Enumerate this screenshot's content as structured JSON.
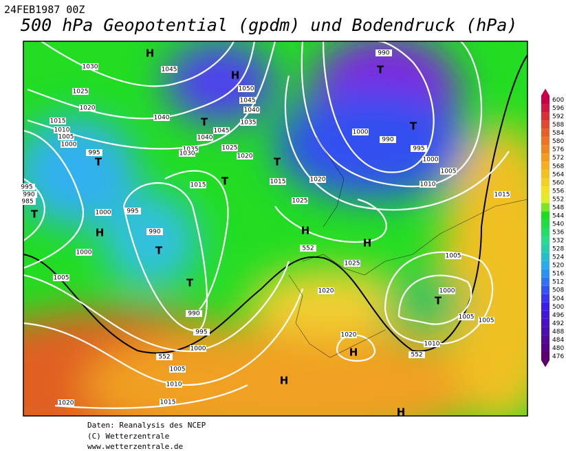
{
  "header": {
    "date": "24FEB1987 00Z",
    "title": "500 hPa Geopotential (gpdm) und Bodendruck (hPa)"
  },
  "map": {
    "labels": [
      "H",
      "H",
      "1045",
      "1030",
      "1050",
      "1045",
      "1040",
      "1035",
      "1025",
      "1020",
      "1040",
      "T",
      "1045",
      "1040",
      "1015",
      "1010",
      "1005",
      "1000",
      "995",
      "T",
      "1035",
      "1030",
      "1025",
      "1020",
      "T",
      "T",
      "1015",
      "1015",
      "1020",
      "995",
      "990",
      "985",
      "T",
      "1000",
      "995",
      "H",
      "990",
      "T",
      "1000",
      "1025",
      "H",
      "1005",
      "T",
      "990",
      "995",
      "1000",
      "1005",
      "1010",
      "1015",
      "1020",
      "1020",
      "1020",
      "H",
      "H",
      "H",
      "990",
      "T",
      "T",
      "1000",
      "990",
      "995",
      "1000",
      "1005",
      "1010",
      "1015",
      "H",
      "1025",
      "1005",
      "1000",
      "T",
      "1005",
      "1005",
      "1010",
      "552",
      "552",
      "552"
    ]
  },
  "colorbar": {
    "levels": [
      476,
      480,
      484,
      488,
      492,
      496,
      500,
      504,
      508,
      512,
      516,
      520,
      524,
      528,
      532,
      536,
      540,
      544,
      548,
      552,
      556,
      560,
      564,
      568,
      572,
      576,
      580,
      584,
      588,
      592,
      596,
      600
    ]
  },
  "footer": {
    "lines": [
      "Daten: Reanalysis des NCEP",
      "(C) Wetterzentrale",
      "www.wetterzentrale.de"
    ]
  }
}
